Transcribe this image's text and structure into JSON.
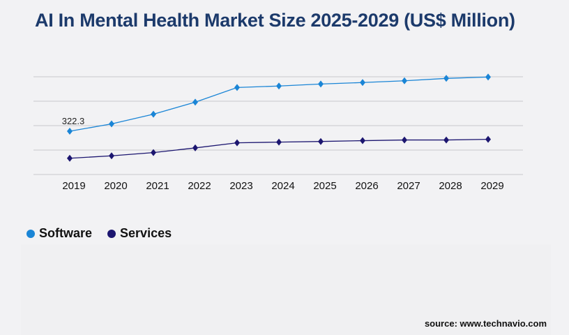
{
  "title": "AI In Mental Health Market Size 2025-2029 (US$ Million)",
  "source": "source: www.technavio.com",
  "chart_data": {
    "type": "line",
    "title": "AI In Mental Health Market Size 2025-2029 (US$ Million)",
    "categories": [
      "2019",
      "2020",
      "2021",
      "2022",
      "2023",
      "2024",
      "2025",
      "2026",
      "2027",
      "2028",
      "2029"
    ],
    "series": [
      {
        "name": "Software",
        "color": "#1a85d6",
        "values": [
          322.3,
          377,
          449,
          539,
          648,
          659,
          674,
          685,
          698,
          716,
          726
        ]
      },
      {
        "name": "Services",
        "color": "#1c1670",
        "values": [
          121,
          139,
          163,
          198,
          236,
          241,
          246,
          252,
          257,
          257,
          262
        ]
      }
    ],
    "data_labels": [
      {
        "series": "Software",
        "category": "2019",
        "text": "322.3"
      }
    ],
    "ylim": [
      0,
      728
    ],
    "y_gridlines": [
      0,
      182,
      364,
      546,
      728
    ],
    "y_tick_labels_shown": false,
    "grid": true,
    "legend": "bottom-left",
    "xlabel": "",
    "ylabel": ""
  }
}
